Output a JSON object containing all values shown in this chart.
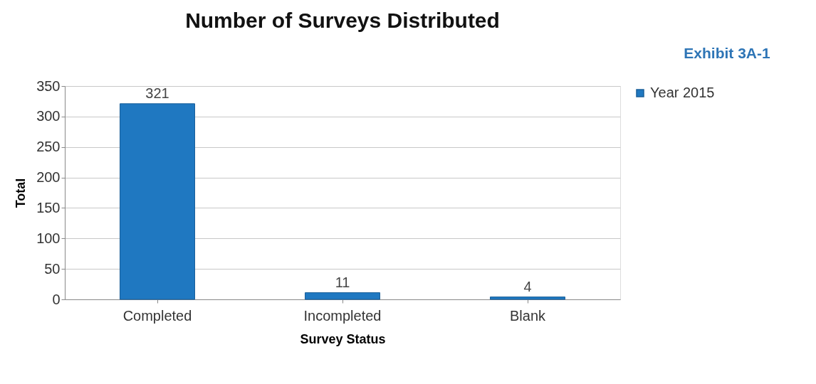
{
  "chart_data": {
    "type": "bar",
    "title": "Number of Surveys Distributed",
    "xlabel": "Survey Status",
    "ylabel": "Total",
    "categories": [
      "Completed",
      "Incompleted",
      "Blank"
    ],
    "series": [
      {
        "name": "Year 2015",
        "color": "#1f78c1",
        "values": [
          321,
          11,
          4
        ]
      }
    ],
    "ylim": [
      0,
      350
    ],
    "yticks": [
      0,
      50,
      100,
      150,
      200,
      250,
      300,
      350
    ],
    "grid": "y",
    "legend": "right",
    "data_labels": true,
    "annotations": [
      "Exhibit 3A-1"
    ]
  }
}
